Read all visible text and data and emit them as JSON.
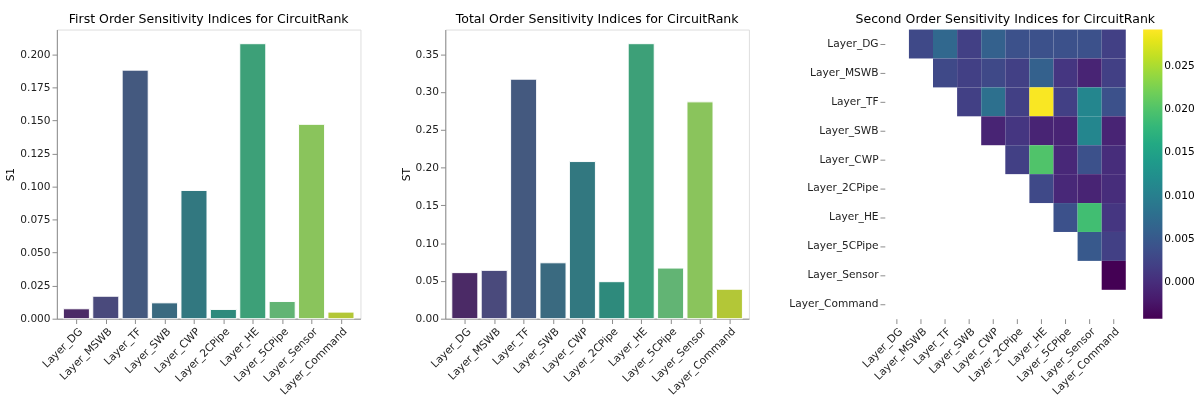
{
  "chart_data": [
    {
      "type": "bar",
      "title": "First Order Sensitivity Indices for CircuitRank",
      "ylabel": "S1",
      "categories": [
        "Layer_DG",
        "Layer_MSWB",
        "Layer_TF",
        "Layer_SWB",
        "Layer_CWP",
        "Layer_2CPipe",
        "Layer_HE",
        "Layer_5CPipe",
        "Layer_Sensor",
        "Layer_Command"
      ],
      "values": [
        0.0075,
        0.017,
        0.188,
        0.012,
        0.097,
        0.007,
        0.208,
        0.013,
        0.147,
        0.005
      ],
      "colors": [
        "#4b2a66",
        "#4a4a7c",
        "#44597f",
        "#3a6a80",
        "#327880",
        "#2e8a7c",
        "#3da078",
        "#62b474",
        "#8ac45c",
        "#b3c737"
      ],
      "ylim": [
        0,
        0.2187
      ],
      "yticks": [
        {
          "value": 0,
          "label": "0.000"
        },
        {
          "value": 0.025,
          "label": "0.025"
        },
        {
          "value": 0.05,
          "label": "0.050"
        },
        {
          "value": 0.075,
          "label": "0.075"
        },
        {
          "value": 0.1,
          "label": "0.100"
        },
        {
          "value": 0.125,
          "label": "0.125"
        },
        {
          "value": 0.15,
          "label": "0.150"
        },
        {
          "value": 0.175,
          "label": "0.175"
        },
        {
          "value": 0.2,
          "label": "0.200"
        }
      ],
      "grid": false,
      "legend": false
    },
    {
      "type": "bar",
      "title": "Total Order Sensitivity Indices for CircuitRank",
      "ylabel": "ST",
      "categories": [
        "Layer_DG",
        "Layer_MSWB",
        "Layer_TF",
        "Layer_SWB",
        "Layer_CWP",
        "Layer_2CPipe",
        "Layer_HE",
        "Layer_5CPipe",
        "Layer_Sensor",
        "Layer_Command"
      ],
      "values": [
        0.061,
        0.064,
        0.317,
        0.074,
        0.208,
        0.049,
        0.364,
        0.067,
        0.287,
        0.039
      ],
      "colors": [
        "#4b2a66",
        "#4a4a7c",
        "#44597f",
        "#3a6a80",
        "#327880",
        "#2e8a7c",
        "#3da078",
        "#62b474",
        "#8ac45c",
        "#b3c737"
      ],
      "ylim": [
        0,
        0.3827
      ],
      "yticks": [
        {
          "value": 0,
          "label": "0.00"
        },
        {
          "value": 0.05,
          "label": "0.05"
        },
        {
          "value": 0.1,
          "label": "0.10"
        },
        {
          "value": 0.15,
          "label": "0.15"
        },
        {
          "value": 0.2,
          "label": "0.20"
        },
        {
          "value": 0.25,
          "label": "0.25"
        },
        {
          "value": 0.3,
          "label": "0.30"
        },
        {
          "value": 0.35,
          "label": "0.35"
        }
      ],
      "grid": false,
      "legend": false
    },
    {
      "type": "heatmap",
      "title": "Second Order Sensitivity Indices for CircuitRank",
      "categories": [
        "Layer_DG",
        "Layer_MSWB",
        "Layer_TF",
        "Layer_SWB",
        "Layer_CWP",
        "Layer_2CPipe",
        "Layer_HE",
        "Layer_5CPipe",
        "Layer_Sensor",
        "Layer_Command"
      ],
      "y_categories": [
        "Layer_DG",
        "Layer_MSWB",
        "Layer_TF",
        "Layer_SWB",
        "Layer_CWP",
        "Layer_2CPipe",
        "Layer_HE",
        "Layer_5CPipe",
        "Layer_Sensor",
        "Layer_Command"
      ],
      "cells": [
        [
          null,
          0.003,
          0.007,
          0.002,
          0.006,
          0.004,
          0.004,
          0.004,
          0.004,
          0.002
        ],
        [
          null,
          null,
          0.003,
          0.002,
          0.003,
          0.002,
          0.006,
          0.001,
          -0.001,
          0.002
        ],
        [
          null,
          null,
          null,
          0.002,
          0.008,
          0.002,
          0.029,
          0.002,
          0.011,
          0.004
        ],
        [
          null,
          null,
          null,
          null,
          -0.001,
          0.001,
          -0.001,
          -0.001,
          0.011,
          -0.001
        ],
        [
          null,
          null,
          null,
          null,
          null,
          0.002,
          0.02,
          -0.0005,
          0.004,
          0.0
        ],
        [
          null,
          null,
          null,
          null,
          null,
          null,
          0.003,
          -0.0005,
          -0.001,
          0.0
        ],
        [
          null,
          null,
          null,
          null,
          null,
          null,
          null,
          0.004,
          0.019,
          0.001
        ],
        [
          null,
          null,
          null,
          null,
          null,
          null,
          null,
          null,
          0.005,
          0.002
        ],
        [
          null,
          null,
          null,
          null,
          null,
          null,
          null,
          null,
          null,
          -0.0042
        ],
        [
          null,
          null,
          null,
          null,
          null,
          null,
          null,
          null,
          null,
          null
        ]
      ],
      "clim": [
        -0.0042,
        0.0292
      ],
      "cticks": [
        {
          "value": 0,
          "label": "0.000"
        },
        {
          "value": 0.005,
          "label": "0.005"
        },
        {
          "value": 0.01,
          "label": "0.010"
        },
        {
          "value": 0.015,
          "label": "0.015"
        },
        {
          "value": 0.02,
          "label": "0.020"
        },
        {
          "value": 0.025,
          "label": "0.025"
        }
      ],
      "grid": false
    }
  ]
}
